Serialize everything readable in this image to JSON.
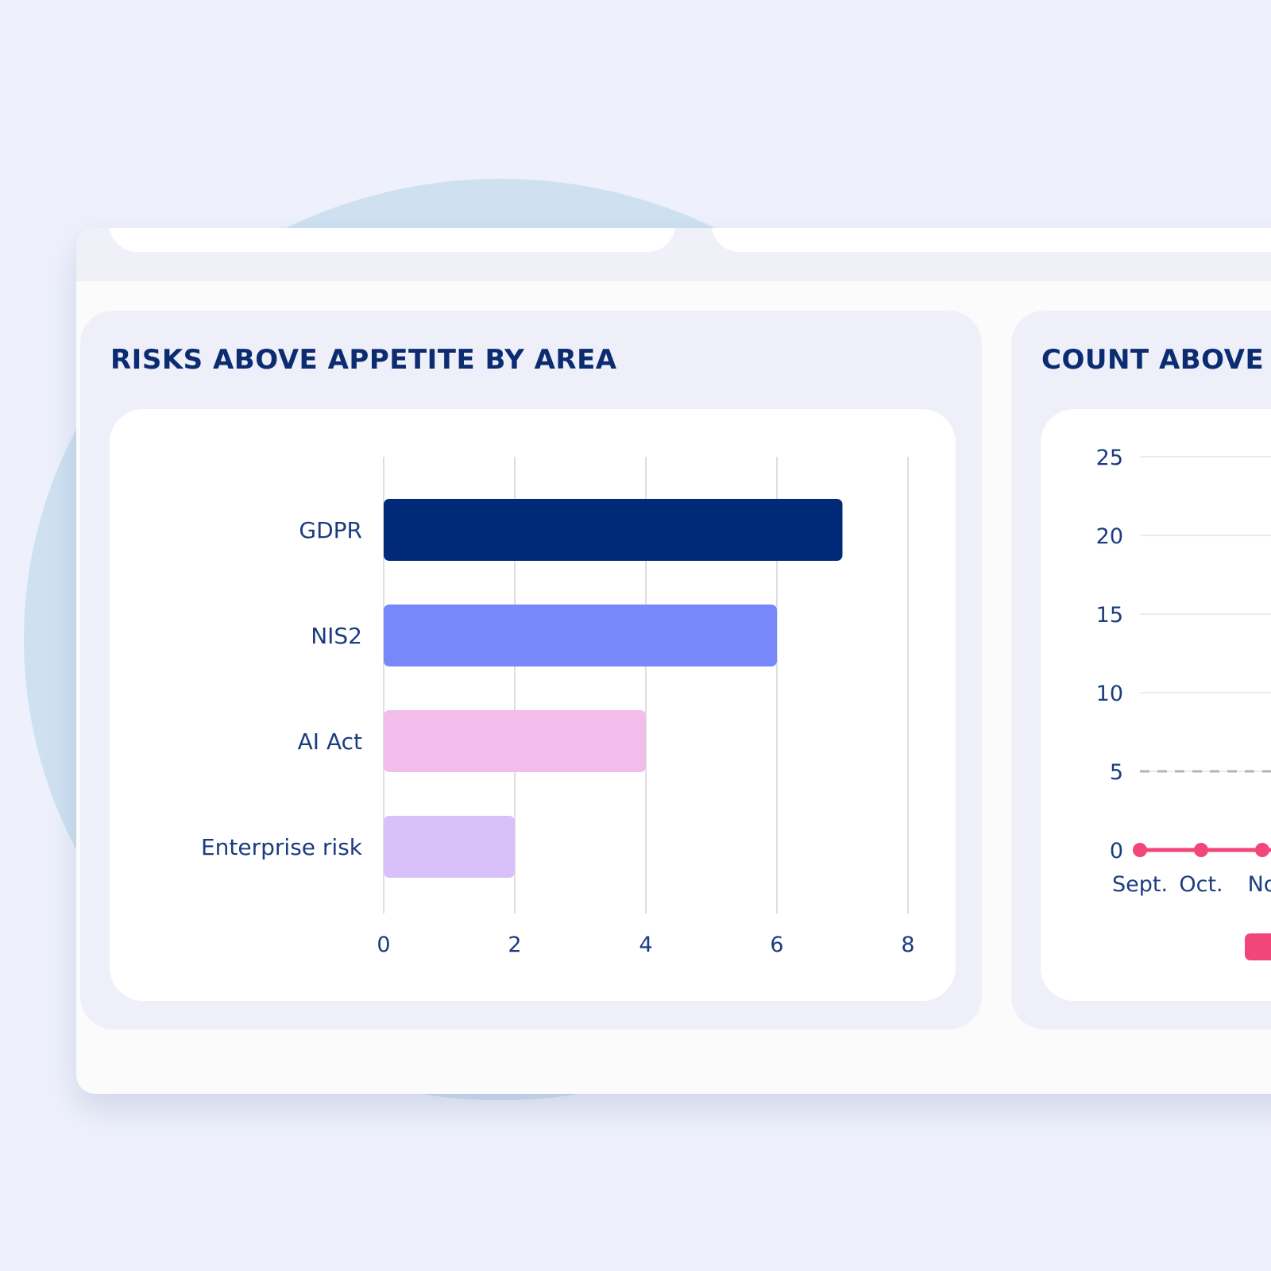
{
  "panels": {
    "left": {
      "title": "RISKS ABOVE APPETITE BY AREA"
    },
    "right": {
      "title": "COUNT ABOVE A"
    }
  },
  "chart_data": [
    {
      "type": "bar",
      "orientation": "horizontal",
      "title": "RISKS ABOVE APPETITE BY AREA",
      "categories": [
        "GDPR",
        "NIS2",
        "AI Act",
        "Enterprise risk"
      ],
      "values": [
        7,
        6,
        4,
        2
      ],
      "colors": [
        "#002a77",
        "#7688fa",
        "#f2bceb",
        "#d8c1fb"
      ],
      "xlim": [
        0,
        8
      ],
      "xticks": [
        0,
        2,
        4,
        6,
        8
      ],
      "grid": true
    },
    {
      "type": "line",
      "title": "COUNT ABOVE A",
      "x": [
        "Sept.",
        "Oct.",
        "No"
      ],
      "values": [
        0,
        0,
        0
      ],
      "color": "#f2457a",
      "ylim": [
        0,
        25
      ],
      "yticks": [
        0,
        5,
        10,
        15,
        20,
        25
      ],
      "threshold": 5,
      "threshold_color": "#b4b4b4",
      "grid": true
    }
  ]
}
